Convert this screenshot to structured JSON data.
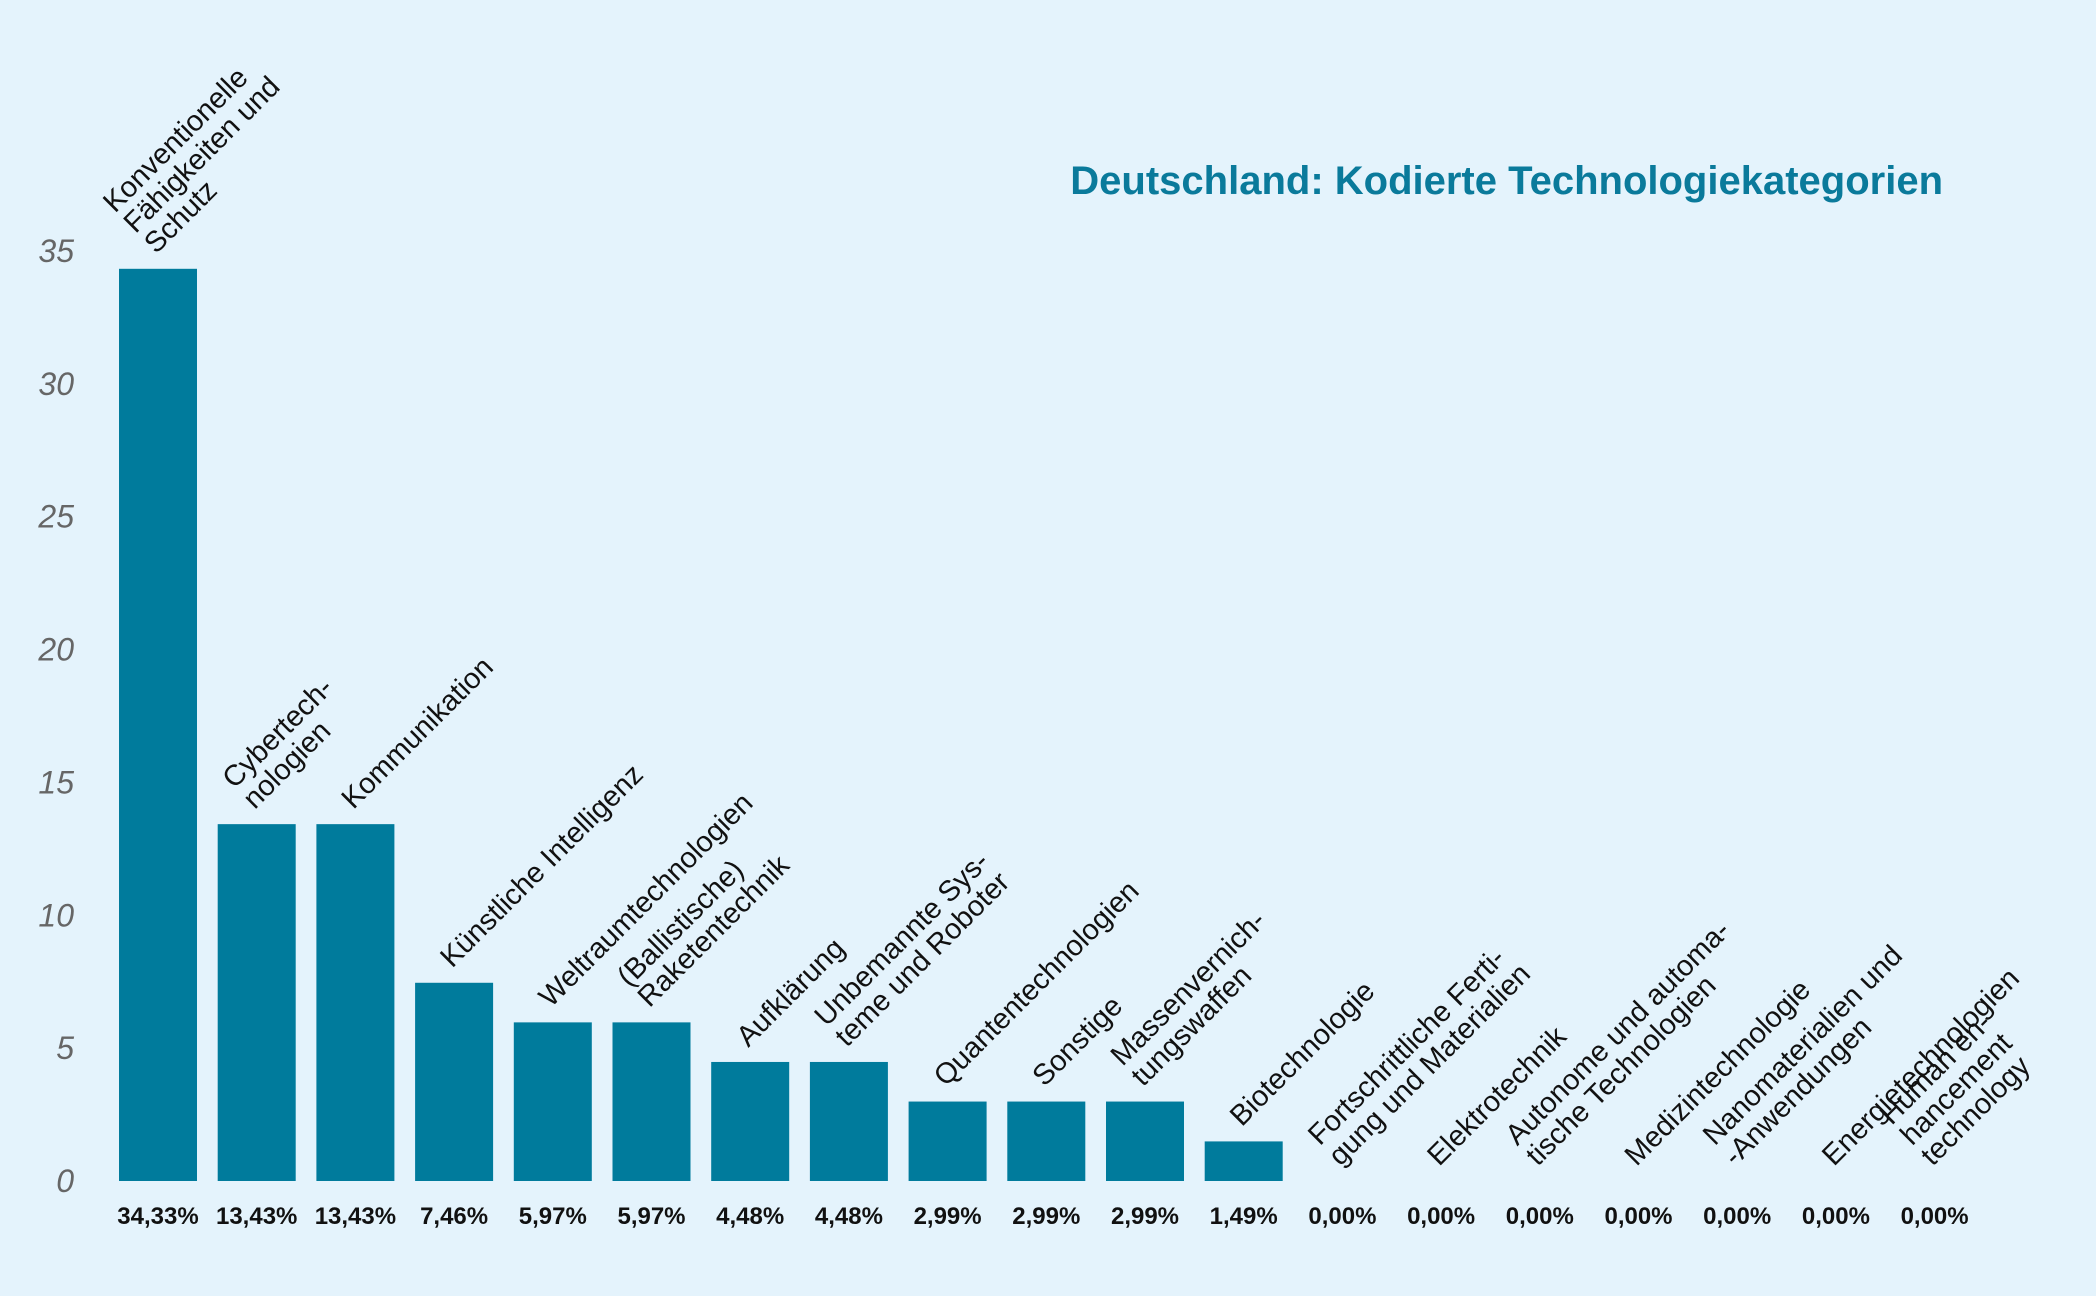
{
  "chart_data": {
    "type": "bar",
    "title": "Deutschland: Kodierte Technologiekategorien",
    "categories": [
      "Konventionelle\nFähigkeiten und\nSchutz",
      "Cybertech-\nnologien",
      "Kommunikation",
      "Künstliche Intelligenz",
      "Weltraumtechnologien",
      "(Ballistische)\nRaketentechnik",
      "Aufklärung",
      "Unbemannte Sys-\nteme und Roboter",
      "Quantentechnologien",
      "Sonstige",
      "Massenvernich-\ntungswaffen",
      "Biotechnologie",
      "Fortschrittliche Ferti-\ngung und Materialien",
      "Elektrotechnik",
      "Autonome und automa-\ntische Technologien",
      "Medizintechnologie",
      "Nanomaterialien und\n-Anwendungen",
      "Energietechnologien",
      "Human en-\nhancement\ntechnology"
    ],
    "values": [
      34.33,
      13.43,
      13.43,
      7.46,
      5.97,
      5.97,
      4.48,
      4.48,
      2.99,
      2.99,
      2.99,
      1.49,
      0,
      0,
      0,
      0,
      0,
      0,
      0
    ],
    "value_labels": [
      "34,33%",
      "13,43%",
      "13,43%",
      "7,46%",
      "5,97%",
      "5,97%",
      "4,48%",
      "4,48%",
      "2,99%",
      "2,99%",
      "2,99%",
      "1,49%",
      "0,00%",
      "0,00%",
      "0,00%",
      "0,00%",
      "0,00%",
      "0,00%",
      "0,00%"
    ],
    "color": "#007b9c",
    "ylim": [
      0,
      35
    ],
    "yticks": [
      0,
      5,
      10,
      15,
      20,
      25,
      30,
      35
    ],
    "grid": false
  }
}
